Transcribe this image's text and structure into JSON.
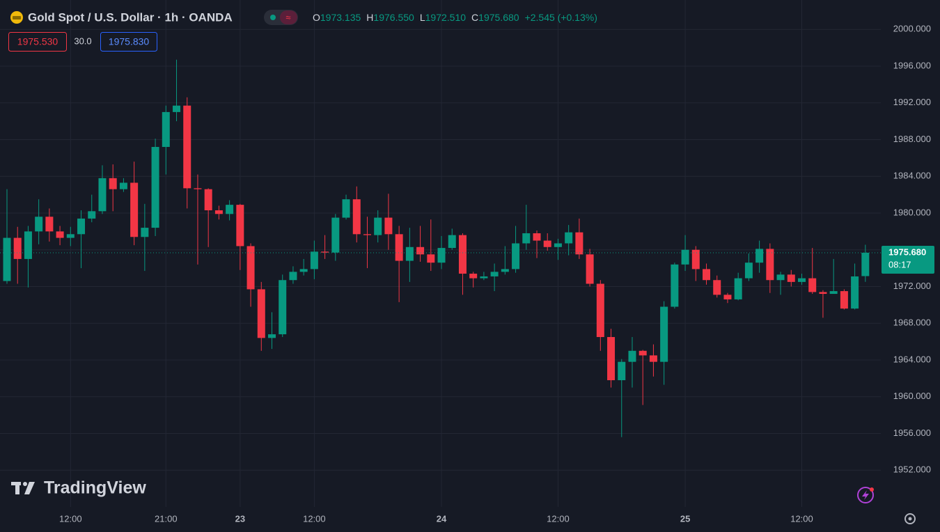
{
  "header": {
    "symbol": "Gold Spot / U.S. Dollar · 1h · OANDA",
    "ohlc": [
      {
        "key": "O",
        "value": "1973.135"
      },
      {
        "key": "H",
        "value": "1976.550"
      },
      {
        "key": "L",
        "value": "1972.510"
      },
      {
        "key": "C",
        "value": "1975.680"
      }
    ],
    "change": "+2.545 (+0.13%)"
  },
  "quote": {
    "bid": "1975.530",
    "spread": "30.0",
    "ask": "1975.830"
  },
  "watermark": "TradingView",
  "chart_data": {
    "type": "candlestick",
    "categories": [
      null,
      null,
      null,
      null,
      null,
      null,
      "12:00",
      null,
      null,
      null,
      null,
      null,
      null,
      null,
      null,
      "21:00",
      null,
      null,
      null,
      null,
      null,
      null,
      "23",
      null,
      null,
      null,
      null,
      null,
      null,
      "12:00",
      null,
      null,
      null,
      null,
      null,
      null,
      null,
      null,
      null,
      null,
      null,
      "24",
      null,
      null,
      null,
      null,
      null,
      null,
      null,
      null,
      null,
      null,
      "12:00",
      null,
      null,
      null,
      null,
      null,
      null,
      null,
      null,
      null,
      null,
      null,
      "25",
      null,
      null,
      null,
      null,
      null,
      null,
      null,
      null,
      null,
      null,
      "12:00",
      null,
      null,
      null,
      null,
      null,
      null
    ],
    "open": [
      1972.6,
      1977.3,
      1975.0,
      1978.0,
      1979.6,
      1978.0,
      1977.3,
      1977.7,
      1979.4,
      1980.2,
      1983.8,
      1982.6,
      1983.3,
      1977.4,
      1978.4,
      1987.2,
      1991.0,
      1991.7,
      1982.7,
      1982.6,
      1980.3,
      1979.9,
      1980.9,
      1976.4,
      1971.7,
      1966.4,
      1966.8,
      1972.7,
      1973.6,
      1973.9,
      1975.8,
      1975.7,
      1979.5,
      1981.5,
      1977.7,
      1977.6,
      1979.5,
      1977.7,
      1974.8,
      1976.3,
      1975.5,
      1974.6,
      1976.2,
      1977.6,
      1973.4,
      1972.9,
      1973.1,
      1973.6,
      1973.9,
      1976.7,
      1977.8,
      1977.0,
      1976.3,
      1976.7,
      1977.9,
      1975.5,
      1972.3,
      1966.5,
      1961.8,
      1963.8,
      1965.0,
      1964.5,
      1963.8,
      1969.8,
      1974.4,
      1976.0,
      1973.9,
      1972.7,
      1971.1,
      1970.6,
      1972.9,
      1974.6,
      1976.1,
      1972.7,
      1973.3,
      1972.5,
      1972.9,
      1971.4,
      1971.2,
      1971.5,
      1969.6,
      1973.135
    ],
    "high": [
      1982.6,
      1978.5,
      1978.6,
      1981.5,
      1980.5,
      1978.6,
      1978.5,
      1980.3,
      1982.0,
      1985.2,
      1985.3,
      1983.8,
      1985.6,
      1981.0,
      1988.1,
      1991.7,
      1996.7,
      1992.6,
      1984.2,
      1982.7,
      1980.8,
      1981.4,
      1981.0,
      1976.7,
      1972.5,
      1969.2,
      1973.3,
      1974.2,
      1975.0,
      1977.0,
      1977.6,
      1979.9,
      1982.0,
      1982.9,
      1979.6,
      1980.3,
      1982.1,
      1978.6,
      1978.4,
      1978.6,
      1979.3,
      1977.5,
      1978.3,
      1977.8,
      1973.6,
      1973.6,
      1974.5,
      1976.4,
      1978.6,
      1980.9,
      1978.1,
      1977.8,
      1977.2,
      1978.7,
      1979.4,
      1976.1,
      1972.7,
      1967.4,
      1964.1,
      1966.5,
      1965.1,
      1965.7,
      1970.4,
      1974.6,
      1977.6,
      1976.4,
      1974.5,
      1973.2,
      1971.3,
      1973.5,
      1975.6,
      1977.0,
      1976.7,
      1973.6,
      1973.8,
      1973.4,
      1976.2,
      1971.6,
      1975.0,
      1971.7,
      1974.5,
      1976.55
    ],
    "low": [
      1972.3,
      1972.3,
      1971.9,
      1976.6,
      1976.9,
      1976.5,
      1976.4,
      1974.0,
      1979.0,
      1979.9,
      1980.2,
      1982.3,
      1976.5,
      1973.7,
      1977.5,
      1984.2,
      1990.0,
      1980.5,
      1974.4,
      1976.3,
      1979.3,
      1979.2,
      1973.8,
      1969.8,
      1965.0,
      1965.2,
      1966.5,
      1972.3,
      1973.2,
      1972.8,
      1975.0,
      1974.8,
      1979.3,
      1976.8,
      1974.0,
      1976.8,
      1976.0,
      1970.3,
      1972.5,
      1974.7,
      1973.7,
      1973.9,
      1976.0,
      1971.1,
      1971.9,
      1972.7,
      1971.5,
      1973.3,
      1973.5,
      1976.0,
      1975.1,
      1975.9,
      1974.9,
      1975.4,
      1975.0,
      1972.0,
      1965.0,
      1961.0,
      1955.6,
      1961.0,
      1959.1,
      1962.2,
      1961.3,
      1969.6,
      1973.7,
      1972.6,
      1972.2,
      1970.8,
      1970.2,
      1970.5,
      1972.6,
      1973.5,
      1971.3,
      1971.1,
      1972.0,
      1972.2,
      1971.2,
      1968.6,
      1971.2,
      1969.5,
      1969.5,
      1972.51
    ],
    "close": [
      1977.3,
      1975.0,
      1978.0,
      1979.6,
      1978.0,
      1977.3,
      1977.7,
      1979.4,
      1980.2,
      1983.8,
      1982.6,
      1983.3,
      1977.4,
      1978.4,
      1987.2,
      1991.0,
      1991.7,
      1982.7,
      1982.6,
      1980.3,
      1979.9,
      1980.9,
      1976.4,
      1971.7,
      1966.4,
      1966.8,
      1972.7,
      1973.6,
      1973.9,
      1975.8,
      1975.7,
      1979.5,
      1981.5,
      1977.7,
      1977.6,
      1979.5,
      1977.7,
      1974.8,
      1976.3,
      1975.5,
      1974.6,
      1976.2,
      1977.6,
      1973.4,
      1972.9,
      1973.1,
      1973.6,
      1973.9,
      1976.7,
      1977.8,
      1977.0,
      1976.3,
      1976.7,
      1977.9,
      1975.5,
      1972.3,
      1966.5,
      1961.8,
      1963.8,
      1965.0,
      1964.5,
      1963.8,
      1969.8,
      1974.4,
      1976.0,
      1973.9,
      1972.7,
      1971.1,
      1970.6,
      1972.9,
      1974.6,
      1976.1,
      1972.7,
      1973.3,
      1972.5,
      1972.9,
      1971.4,
      1971.2,
      1971.5,
      1969.6,
      1973.1,
      1975.68
    ],
    "up_color": "#089981",
    "down_color": "#f23645",
    "ylim": [
      1948,
      2003.2
    ],
    "yticks": [
      {
        "value": 1952,
        "label": "1952.000"
      },
      {
        "value": 1956,
        "label": "1956.000"
      },
      {
        "value": 1960,
        "label": "1960.000"
      },
      {
        "value": 1964,
        "label": "1964.000"
      },
      {
        "value": 1968,
        "label": "1968.000"
      },
      {
        "value": 1972,
        "label": "1972.000"
      },
      {
        "value": 1976,
        "label": "1976.000"
      },
      {
        "value": 1980,
        "label": "1980.000"
      },
      {
        "value": 1984,
        "label": "1984.000"
      },
      {
        "value": 1988,
        "label": "1988.000"
      },
      {
        "value": 1992,
        "label": "1992.000"
      },
      {
        "value": 1996,
        "label": "1996.000"
      },
      {
        "value": 2000,
        "label": "2000.000"
      }
    ],
    "grid": true,
    "last_price": {
      "value": 1975.68,
      "label": "1975.680"
    },
    "countdown": "08:17"
  }
}
